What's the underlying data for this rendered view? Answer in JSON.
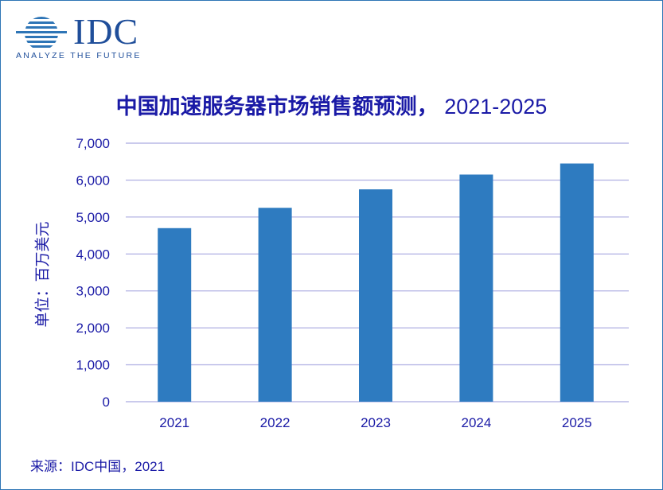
{
  "logo": {
    "wordmark": "IDC",
    "tagline": "ANALYZE THE FUTURE",
    "colors": {
      "mark": "#2E75B6",
      "text": "#1F4E9A"
    }
  },
  "chart_data": {
    "type": "bar",
    "title": "中国加速服务器市场销售额预测，",
    "title_years": "2021-2025",
    "ylabel": "单位：百万美元",
    "xlabel": "",
    "categories": [
      "2021",
      "2022",
      "2023",
      "2024",
      "2025"
    ],
    "values": [
      4700,
      5250,
      5750,
      6150,
      6450
    ],
    "ylim": [
      0,
      7000
    ],
    "yticks": [
      0,
      1000,
      2000,
      3000,
      4000,
      5000,
      6000,
      7000
    ],
    "ytick_labels": [
      "0",
      "1,000",
      "2,000",
      "3,000",
      "4,000",
      "5,000",
      "6,000",
      "7,000"
    ],
    "grid": true,
    "legend": "none",
    "colors": {
      "bar": "#2E7BC0",
      "grid": "#B8B8E6",
      "text": "#1A1AA6"
    }
  },
  "source": "来源：IDC中国，2021"
}
